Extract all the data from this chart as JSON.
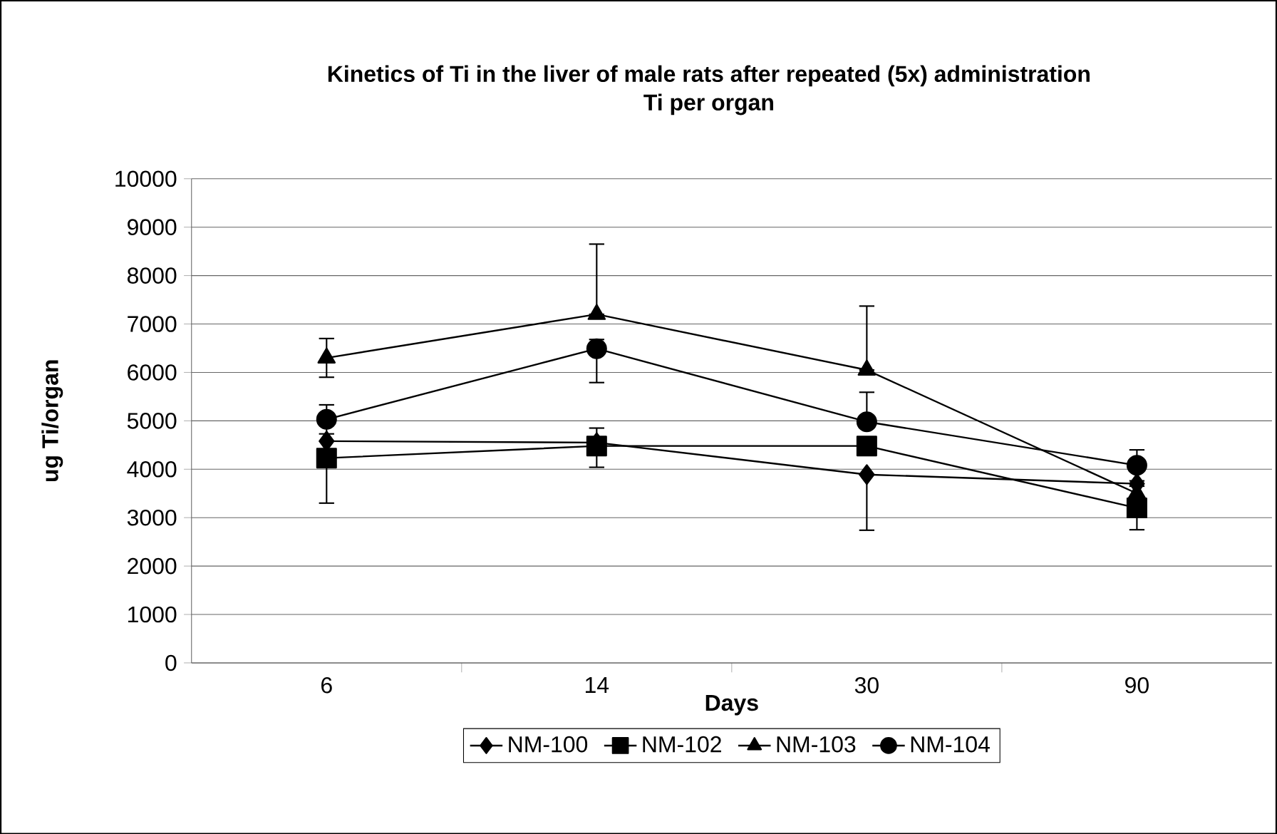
{
  "chart_data": {
    "type": "line",
    "title": "**Kinetics of Ti in the liver of male rats after repeated (5x) administration**\nTi per organ",
    "xlabel": "Days",
    "ylabel": "ug Ti/organ",
    "categories": [
      "6",
      "14",
      "30",
      "90"
    ],
    "series": [
      {
        "name": "NM-100",
        "color": "#000000",
        "marker": "diamond",
        "values": [
          4580,
          4550,
          3890,
          3700
        ],
        "errors": [
          null,
          [
            4550,
            4850
          ],
          [
            2740,
            3890
          ],
          null
        ]
      },
      {
        "name": "NM-102",
        "color": "#000000",
        "marker": "square",
        "values": [
          4230,
          4480,
          4480,
          3200
        ],
        "errors": [
          [
            3300,
            4230
          ],
          [
            4040,
            4480
          ],
          [
            4330,
            4630
          ],
          450
        ]
      },
      {
        "name": "NM-103",
        "color": "#000000",
        "marker": "triangle",
        "values": [
          6300,
          7200,
          6050,
          3500
        ],
        "errors": [
          400,
          [
            7200,
            8650
          ],
          [
            6050,
            7370
          ],
          null
        ]
      },
      {
        "name": "NM-104",
        "color": "#000000",
        "marker": "circle",
        "values": [
          5030,
          6490,
          4980,
          4080
        ],
        "errors": [
          [
            4730,
            5330
          ],
          [
            5790,
            6680
          ],
          [
            4980,
            5590
          ],
          320
        ]
      }
    ],
    "ylim": [
      0,
      10000
    ],
    "yticks": [
      0,
      1000,
      2000,
      3000,
      4000,
      5000,
      6000,
      7000,
      8000,
      9000,
      10000
    ],
    "grid": "y",
    "legend": "bottom"
  }
}
